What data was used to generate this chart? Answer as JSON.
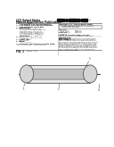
{
  "bg_color": "#ffffff",
  "barcode_color": "#111111",
  "text_dark": "#111111",
  "text_mid": "#333333",
  "text_light": "#555555",
  "line_color": "#666666",
  "diagram_fill": "#e8e8e8",
  "diagram_edge": "#555555",
  "inner_fill": "#c0c0c0",
  "inner_edge": "#888888"
}
